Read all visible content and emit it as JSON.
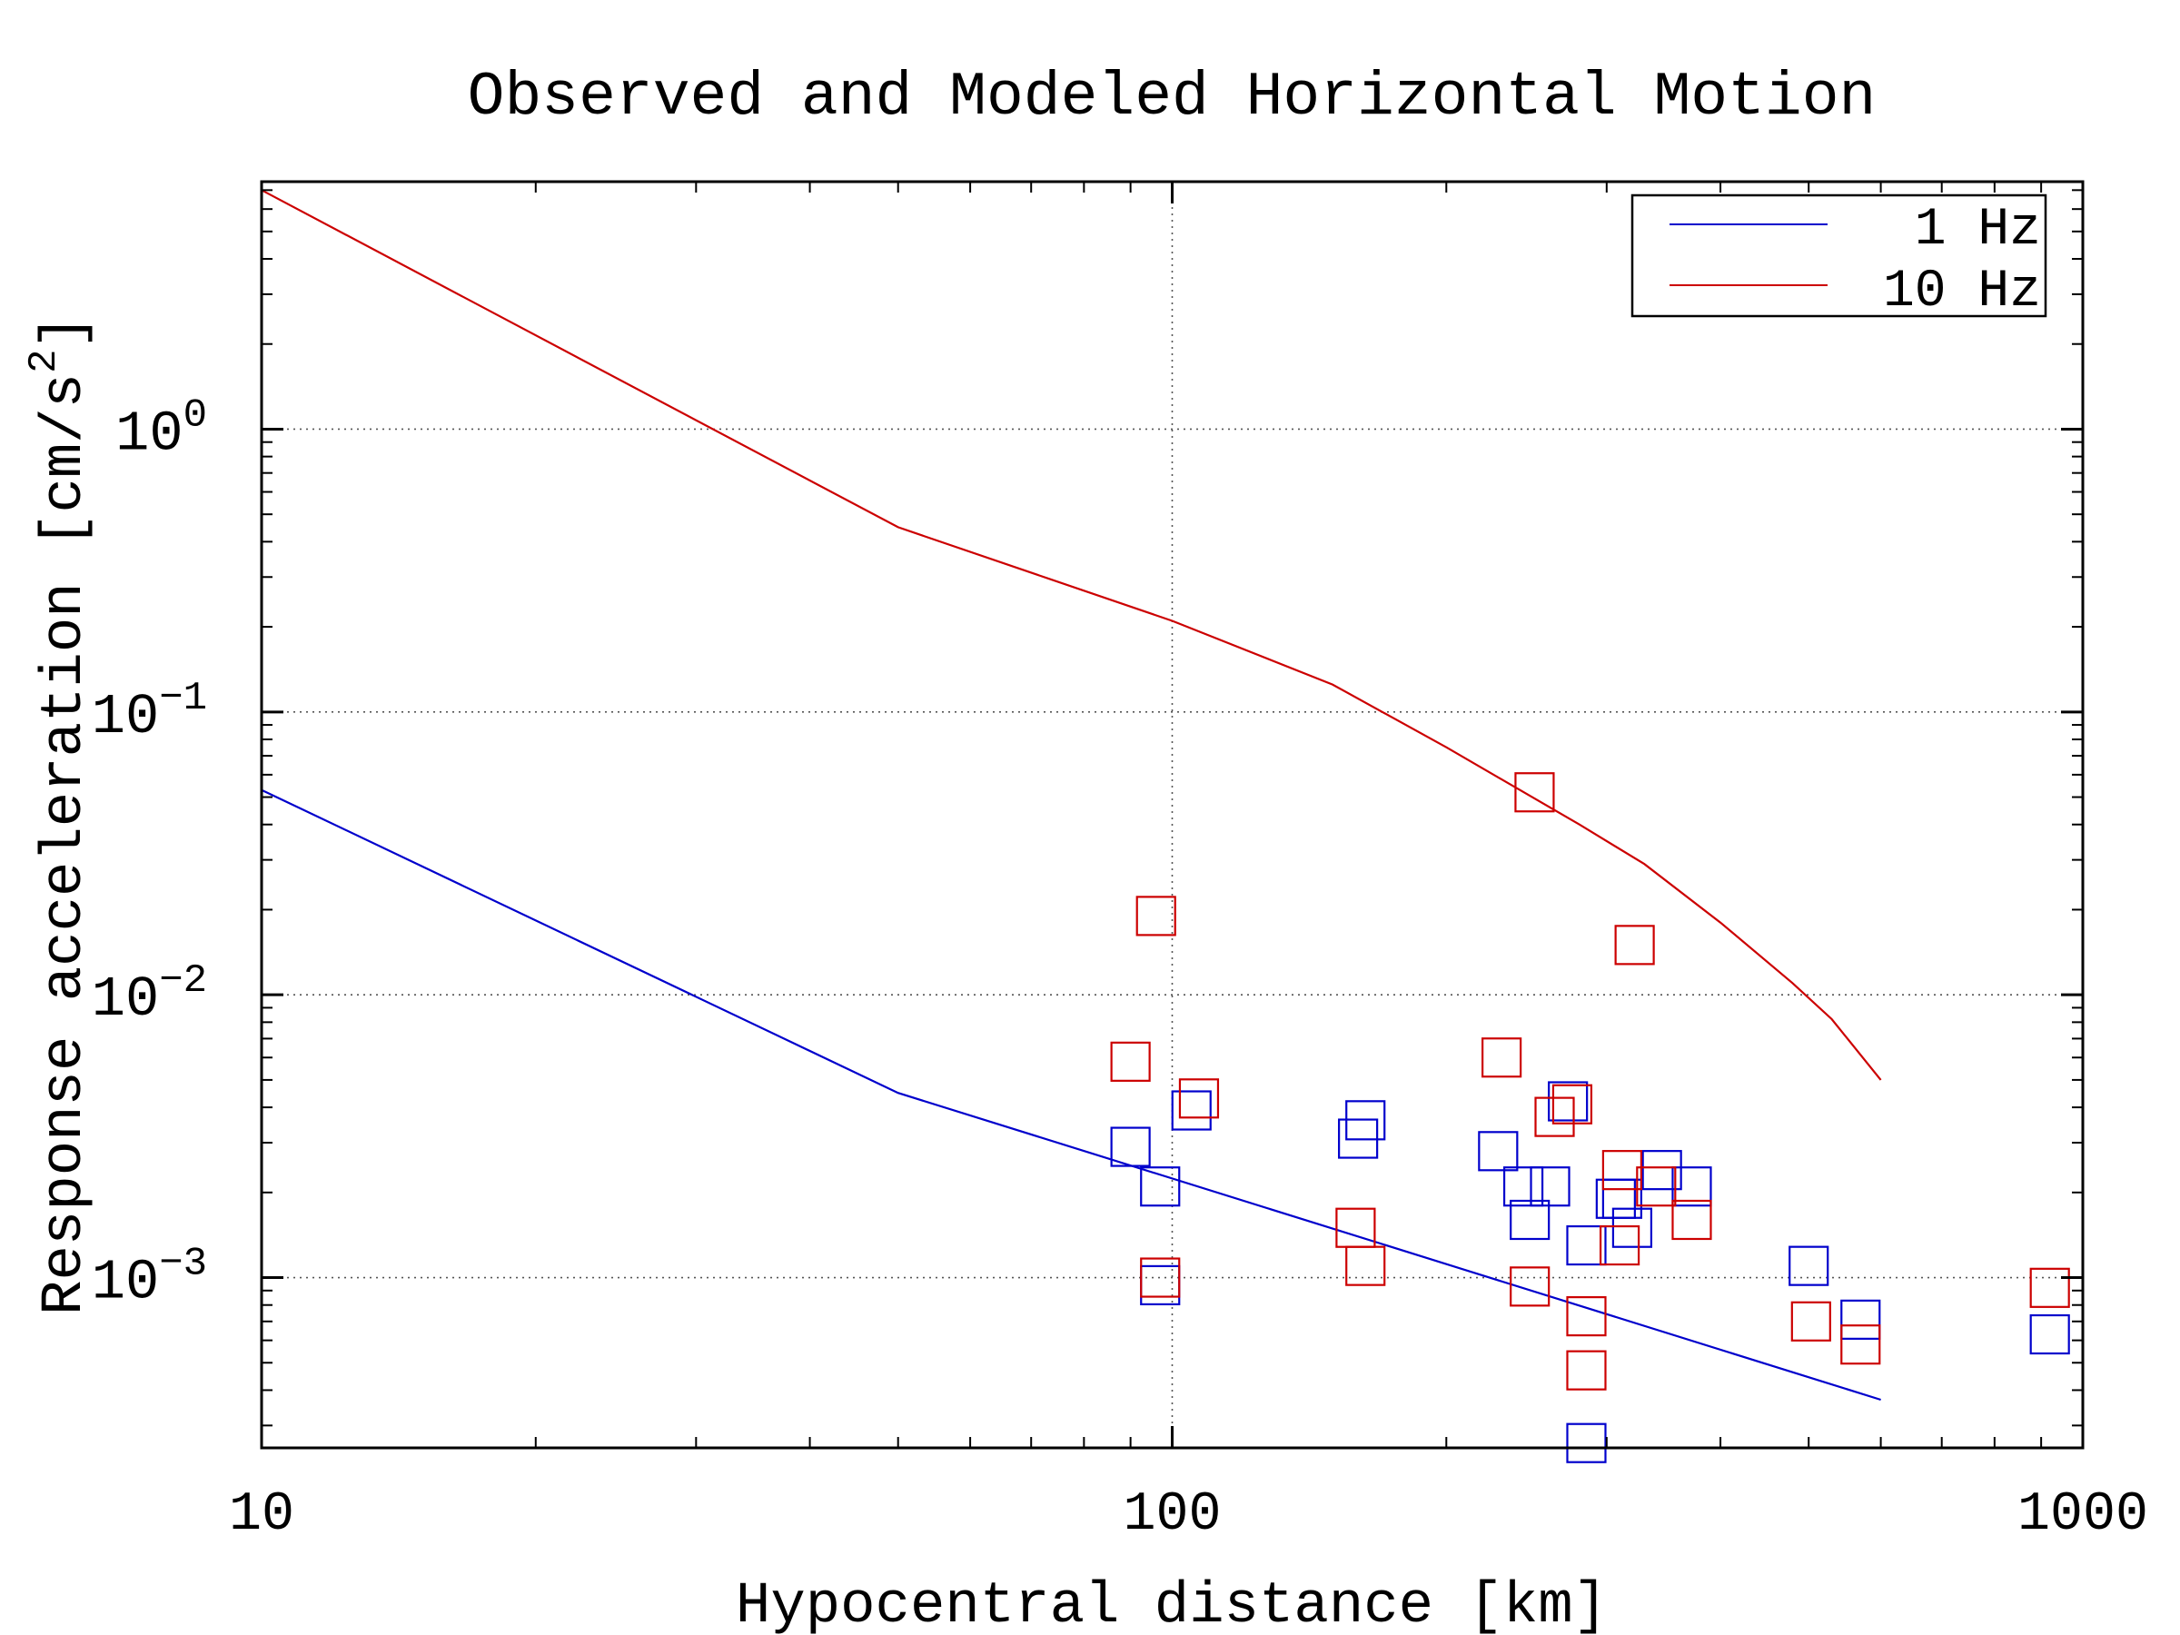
{
  "chart_data": {
    "type": "scatter",
    "title": "Observed and Modeled Horizontal Motion",
    "xlabel": "Hypocentral distance [km]",
    "ylabel_main": "Response acceleration [cm/s",
    "ylabel_sup": "2",
    "ylabel_close": "]",
    "x_scale": "log",
    "y_scale": "log",
    "xlim": [
      10,
      1000
    ],
    "ylim": [
      0.00025,
      7.5
    ],
    "grid": true,
    "legend_position": "top-right",
    "x_ticks": [
      {
        "value": 10,
        "label": "10"
      },
      {
        "value": 100,
        "label": "100"
      },
      {
        "value": 1000,
        "label": "1000"
      }
    ],
    "y_ticks": [
      {
        "value": 0.001,
        "base": "10",
        "exp": "−3"
      },
      {
        "value": 0.01,
        "base": "10",
        "exp": "−2"
      },
      {
        "value": 0.1,
        "base": "10",
        "exp": "−1"
      },
      {
        "value": 1,
        "base": "10",
        "exp": "0"
      }
    ],
    "series": [
      {
        "name": "1 Hz",
        "color": "#0000cc",
        "line": [
          [
            10,
            0.053
          ],
          [
            50,
            0.0045
          ],
          [
            600,
            0.00037
          ]
        ],
        "points": [
          [
            90,
            0.0029
          ],
          [
            97,
            0.0021
          ],
          [
            97,
            0.00094
          ],
          [
            105,
            0.0039
          ],
          [
            160,
            0.0031
          ],
          [
            163,
            0.0036
          ],
          [
            228,
            0.0028
          ],
          [
            243,
            0.0021
          ],
          [
            247,
            0.0016
          ],
          [
            260,
            0.0021
          ],
          [
            272,
            0.0042
          ],
          [
            285,
            0.0013
          ],
          [
            285,
            0.00026
          ],
          [
            307,
            0.0019
          ],
          [
            312,
            0.0019
          ],
          [
            320,
            0.0015
          ],
          [
            345,
            0.0024
          ],
          [
            372,
            0.0021
          ],
          [
            500,
            0.0011
          ],
          [
            570,
            0.00071
          ],
          [
            920,
            0.00063
          ]
        ]
      },
      {
        "name": "10 Hz",
        "color": "#cc0000",
        "line": [
          [
            10,
            7.0
          ],
          [
            50,
            0.45
          ],
          [
            100,
            0.21
          ],
          [
            150,
            0.125
          ],
          [
            200,
            0.075
          ],
          [
            280,
            0.04
          ],
          [
            330,
            0.029
          ],
          [
            400,
            0.018
          ],
          [
            480,
            0.011
          ],
          [
            530,
            0.0082
          ],
          [
            600,
            0.005
          ]
        ],
        "points": [
          [
            90,
            0.0058
          ],
          [
            96,
            0.019
          ],
          [
            97,
            0.001
          ],
          [
            107,
            0.0043
          ],
          [
            159,
            0.0015
          ],
          [
            163,
            0.0011
          ],
          [
            230,
            0.006
          ],
          [
            247,
            0.00093
          ],
          [
            250,
            0.052
          ],
          [
            263,
            0.0037
          ],
          [
            275,
            0.0041
          ],
          [
            285,
            0.00073
          ],
          [
            285,
            0.00047
          ],
          [
            310,
            0.0013
          ],
          [
            312,
            0.0024
          ],
          [
            322,
            0.015
          ],
          [
            340,
            0.0021
          ],
          [
            372,
            0.0016
          ],
          [
            503,
            0.0007
          ],
          [
            570,
            0.00058
          ],
          [
            920,
            0.00092
          ]
        ]
      }
    ]
  }
}
